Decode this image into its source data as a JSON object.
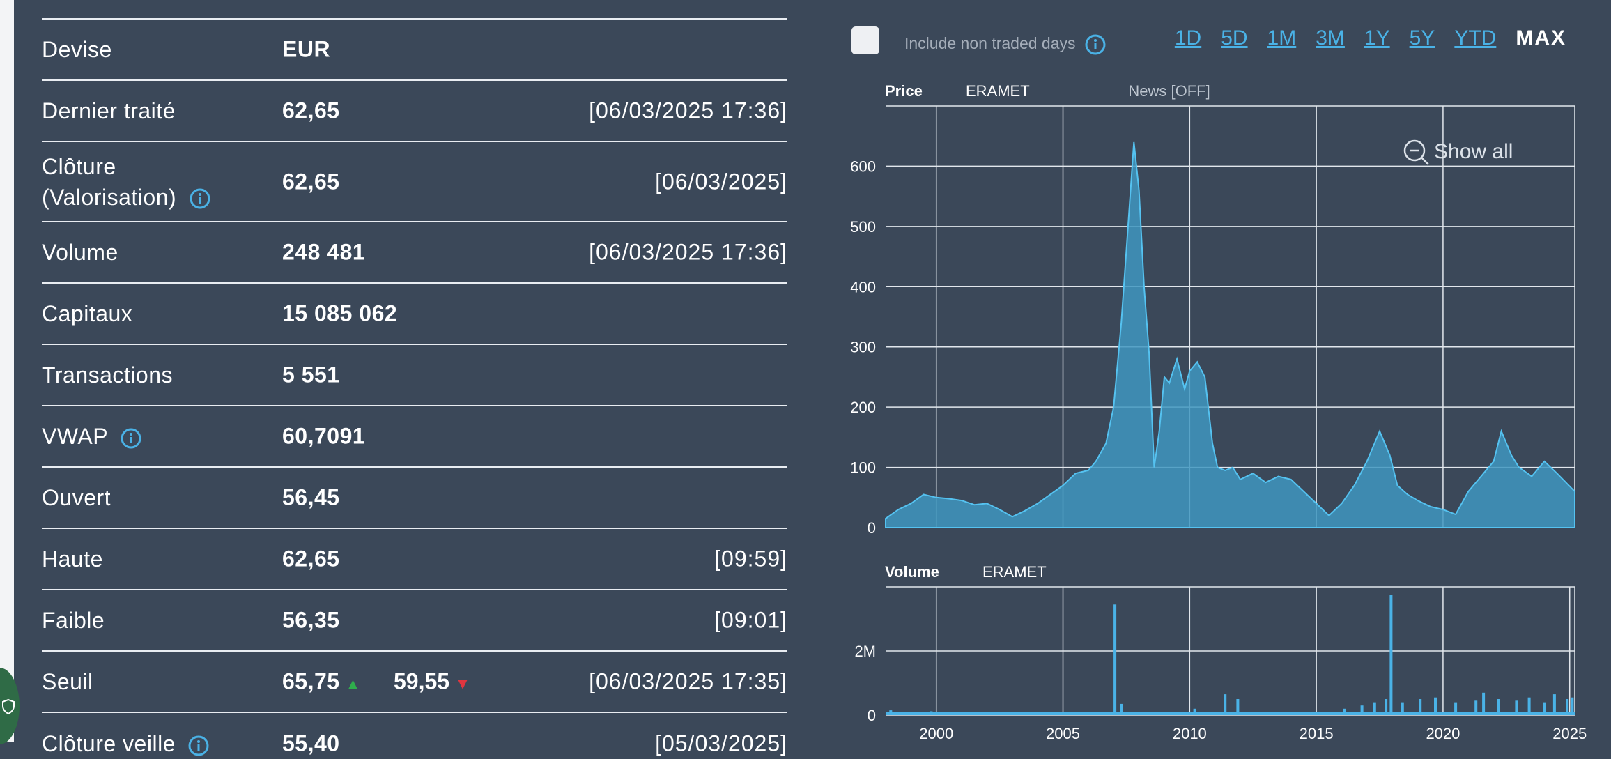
{
  "table": {
    "rows": [
      {
        "label": "Devise",
        "value": "EUR",
        "date": ""
      },
      {
        "label": "Dernier traité",
        "value": "62,65",
        "date": "[06/03/2025 17:36]"
      },
      {
        "label_line1": "Clôture",
        "label_line2": "(Valorisation)",
        "value": "62,65",
        "date": "[06/03/2025]"
      },
      {
        "label": "Volume",
        "value": "248 481",
        "date": "[06/03/2025 17:36]"
      },
      {
        "label": "Capitaux",
        "value": "15 085 062",
        "date": ""
      },
      {
        "label": "Transactions",
        "value": "5 551",
        "date": ""
      },
      {
        "label": "VWAP",
        "value": "60,7091",
        "date": ""
      },
      {
        "label": "Ouvert",
        "value": "56,45",
        "date": ""
      },
      {
        "label": "Haute",
        "value": "62,65",
        "date": "[09:59]"
      },
      {
        "label": "Faible",
        "value": "56,35",
        "date": "[09:01]"
      },
      {
        "label": "Seuil",
        "value": "65,75",
        "value2": "59,55",
        "date": "[06/03/2025 17:35]"
      },
      {
        "label": "Clôture veille",
        "value": "55,40",
        "date": "[05/03/2025]"
      }
    ]
  },
  "controls": {
    "include_non_traded": "Include non traded days",
    "ranges": [
      "1D",
      "5D",
      "1M",
      "3M",
      "1Y",
      "5Y",
      "YTD",
      "MAX"
    ],
    "active_range": "MAX",
    "show_all": "Show all"
  },
  "price_chart": {
    "title": "Price",
    "instrument": "ERAMET",
    "news": "News [OFF]"
  },
  "volume_chart": {
    "title": "Volume",
    "instrument": "ERAMET"
  },
  "chart_data": [
    {
      "type": "area",
      "title": "Price",
      "series": [
        {
          "name": "ERAMET"
        }
      ],
      "x": [
        1998.0,
        1998.5,
        1999.0,
        1999.5,
        2000.0,
        2000.5,
        2001.0,
        2001.5,
        2002.0,
        2002.5,
        2003.0,
        2003.5,
        2004.0,
        2004.5,
        2005.0,
        2005.5,
        2006.0,
        2006.3,
        2006.7,
        2007.0,
        2007.3,
        2007.6,
        2007.8,
        2008.0,
        2008.2,
        2008.4,
        2008.6,
        2008.8,
        2009.0,
        2009.2,
        2009.5,
        2009.8,
        2010.0,
        2010.3,
        2010.6,
        2010.9,
        2011.1,
        2011.4,
        2011.7,
        2012.0,
        2012.5,
        2013.0,
        2013.5,
        2014.0,
        2014.5,
        2015.0,
        2015.5,
        2016.0,
        2016.5,
        2017.0,
        2017.5,
        2017.9,
        2018.2,
        2018.6,
        2019.0,
        2019.5,
        2020.0,
        2020.5,
        2021.0,
        2021.5,
        2022.0,
        2022.3,
        2022.7,
        2023.0,
        2023.5,
        2024.0,
        2024.5,
        2025.2
      ],
      "y": [
        15,
        30,
        40,
        55,
        50,
        48,
        45,
        38,
        40,
        30,
        18,
        28,
        40,
        55,
        70,
        90,
        95,
        110,
        140,
        200,
        340,
        520,
        640,
        560,
        400,
        290,
        100,
        160,
        250,
        240,
        280,
        230,
        260,
        275,
        250,
        140,
        100,
        95,
        100,
        80,
        90,
        75,
        85,
        80,
        60,
        40,
        20,
        40,
        70,
        110,
        160,
        120,
        70,
        55,
        45,
        35,
        30,
        22,
        60,
        85,
        110,
        160,
        120,
        100,
        85,
        110,
        90,
        60
      ],
      "xlim": [
        1998,
        2025.2
      ],
      "ylim": [
        0,
        700
      ],
      "xticks": [
        2000,
        2005,
        2010,
        2015,
        2020
      ],
      "yticks": [
        0,
        100,
        200,
        300,
        400,
        500,
        600
      ],
      "grid": true
    },
    {
      "type": "bar",
      "title": "Volume",
      "series": [
        {
          "name": "ERAMET"
        }
      ],
      "x": [
        1998.2,
        1998.6,
        1999.1,
        1999.8,
        2000.3,
        2001.2,
        2002.1,
        2003.0,
        2004.2,
        2005.1,
        2006.0,
        2006.6,
        2007.05,
        2007.3,
        2008.0,
        2009.1,
        2010.2,
        2011.4,
        2011.9,
        2012.8,
        2013.6,
        2014.4,
        2015.2,
        2016.1,
        2016.8,
        2017.3,
        2017.75,
        2017.95,
        2018.4,
        2019.1,
        2019.7,
        2020.5,
        2021.3,
        2021.6,
        2022.2,
        2022.9,
        2023.4,
        2024.0,
        2024.4,
        2024.9,
        2025.1
      ],
      "values": [
        0.15,
        0.1,
        0.08,
        0.12,
        0.05,
        0.04,
        0.03,
        0.04,
        0.05,
        0.04,
        0.06,
        0.08,
        3.45,
        0.35,
        0.1,
        0.08,
        0.2,
        0.65,
        0.5,
        0.1,
        0.06,
        0.05,
        0.08,
        0.2,
        0.3,
        0.4,
        0.5,
        3.75,
        0.4,
        0.5,
        0.55,
        0.4,
        0.45,
        0.7,
        0.5,
        0.45,
        0.55,
        0.4,
        0.65,
        0.5,
        0.55
      ],
      "xlim": [
        1998,
        2025.2
      ],
      "ylim": [
        0,
        4
      ],
      "xticks": [
        2000,
        2005,
        2010,
        2015,
        2020,
        2025
      ],
      "yticks": [
        0,
        2
      ],
      "ytick_labels": [
        "0",
        "2M"
      ],
      "grid": true
    }
  ]
}
